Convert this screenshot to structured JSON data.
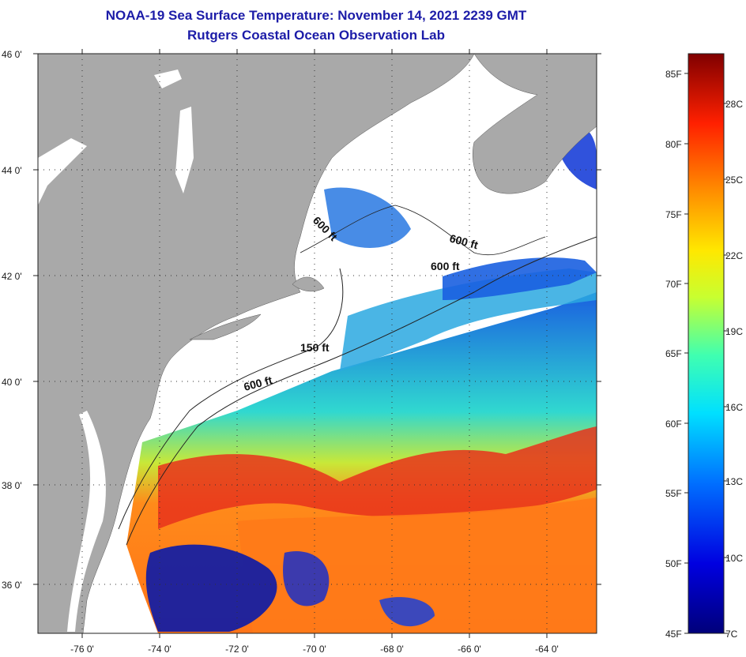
{
  "title": {
    "line1": "NOAA-19 Sea Surface Temperature:  November 14, 2021 2239 GMT",
    "line2": "Rutgers Coastal Ocean Observation Lab"
  },
  "map": {
    "lat_labels": [
      "46 0'",
      "44 0'",
      "42 0'",
      "40 0'",
      "38 0'",
      "36 0'"
    ],
    "lon_labels": [
      "-76 0'",
      "-74 0'",
      "-72 0'",
      "-70 0'",
      "-68 0'",
      "-66 0'",
      "-64 0'"
    ],
    "lat_range": [
      35,
      46
    ],
    "lon_range": [
      -77,
      -62.5
    ],
    "isobath_labels": [
      "600 ft",
      "600 ft",
      "600 ft",
      "150 ft",
      "600 ft"
    ],
    "colors": {
      "land": "#a9a9a9",
      "cloud": "#ffffff",
      "warm": "#ff6a1a",
      "hot": "#e0281a",
      "cool": "#1a6fe0",
      "cold": "#0a1aa8",
      "mid": "#33e0c8"
    }
  },
  "color_scale": {
    "fahrenheit_labels": [
      "85F",
      "80F",
      "75F",
      "70F",
      "65F",
      "60F",
      "55F",
      "50F",
      "45F"
    ],
    "celsius_labels": [
      "28C",
      "25C",
      "22C",
      "19C",
      "16C",
      "13C",
      "10C",
      "7C"
    ]
  }
}
